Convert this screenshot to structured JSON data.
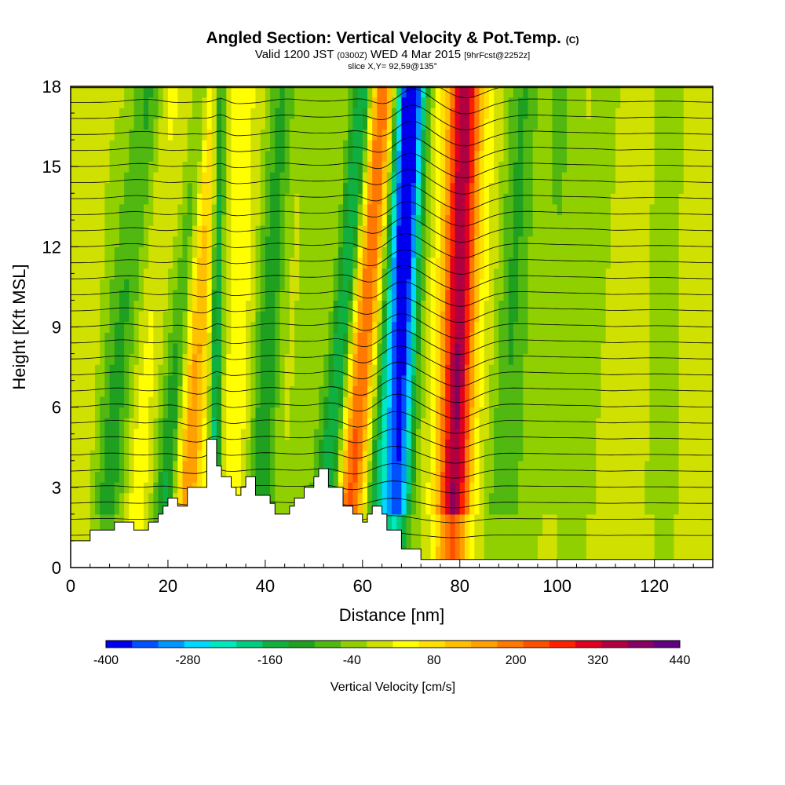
{
  "header": {
    "title_main": "Angled Section: Vertical Velocity & Pot.Temp.",
    "title_tag": "(C)",
    "valid_prefix": "Valid 1200 JST",
    "valid_utc": "(0300Z)",
    "valid_date": "WED 4 Mar 2015",
    "valid_fcst": "[9hrFcst@2252z]",
    "slice_info": "slice X,Y= 92,59@135°"
  },
  "chart_data": {
    "type": "heatmap",
    "xlabel": "Distance [nm]",
    "ylabel": "Height [Kft MSL]",
    "xlim": [
      0,
      132
    ],
    "ylim": [
      0,
      18
    ],
    "x_ticks": [
      0,
      20,
      40,
      60,
      80,
      100,
      120
    ],
    "y_ticks": [
      0,
      3,
      6,
      9,
      12,
      15,
      18
    ],
    "colorbar": {
      "label": "Vertical Velocity [cm/s]",
      "range": [
        -400,
        440
      ],
      "step": 40,
      "tick_labels": [
        "-400",
        "-280",
        "-160",
        "-40",
        "80",
        "200",
        "320",
        "440"
      ],
      "colors": [
        "#0000ee",
        "#0050ff",
        "#0096ff",
        "#00d8ff",
        "#00e8c0",
        "#00cc80",
        "#10b040",
        "#20a020",
        "#50b810",
        "#90d000",
        "#d0e000",
        "#ffff00",
        "#ffe000",
        "#ffc000",
        "#ffa000",
        "#ff7800",
        "#ff5000",
        "#ff2000",
        "#e00020",
        "#b00040",
        "#880060",
        "#600080"
      ]
    },
    "terrain_profile": {
      "x": [
        0,
        4,
        4,
        9,
        9,
        13,
        13,
        16,
        16,
        18,
        18,
        19,
        19,
        20,
        20,
        22,
        22,
        24,
        24,
        28,
        28,
        30,
        30,
        31,
        31,
        33,
        33,
        34,
        34,
        35,
        35,
        36,
        36,
        38,
        38,
        41,
        41,
        42,
        42,
        45,
        45,
        46,
        46,
        48,
        48,
        50,
        50,
        51,
        51,
        53,
        53,
        56,
        56,
        58,
        58,
        60,
        60,
        61,
        61,
        62,
        62,
        64,
        64,
        65,
        65,
        68,
        68,
        72,
        72,
        132
      ],
      "y": [
        1.0,
        1.0,
        1.4,
        1.4,
        1.7,
        1.7,
        1.4,
        1.4,
        1.7,
        1.7,
        2.0,
        2.0,
        2.3,
        2.3,
        2.6,
        2.6,
        2.3,
        2.3,
        3.0,
        3.0,
        4.8,
        4.8,
        3.8,
        3.8,
        3.4,
        3.4,
        3.0,
        3.0,
        2.7,
        2.7,
        3.0,
        3.0,
        3.4,
        3.4,
        2.7,
        2.7,
        2.4,
        2.4,
        2.0,
        2.0,
        2.3,
        2.3,
        2.6,
        2.6,
        3.0,
        3.0,
        3.4,
        3.4,
        3.7,
        3.7,
        3.0,
        3.0,
        2.3,
        2.3,
        2.0,
        2.0,
        1.7,
        1.7,
        2.0,
        2.0,
        2.3,
        2.3,
        2.0,
        2.0,
        1.4,
        1.4,
        0.7,
        0.7,
        0.3,
        0.3
      ]
    },
    "velocity_features": [
      {
        "x": 8,
        "slope": 0.55,
        "width": 3.5,
        "amp": -110
      },
      {
        "x": 14,
        "slope": 0.45,
        "width": 2.2,
        "amp": 40
      },
      {
        "x": 20,
        "slope": 0.55,
        "width": 2.5,
        "amp": -160
      },
      {
        "x": 24,
        "slope": 0.35,
        "width": 3.0,
        "amp": 170
      },
      {
        "x": 29.5,
        "slope": 0.1,
        "width": 1.2,
        "amp": -190
      },
      {
        "x": 34,
        "slope": 0.3,
        "width": 3.0,
        "amp": 30
      },
      {
        "x": 39,
        "slope": 0.35,
        "width": 3.0,
        "amp": -120
      },
      {
        "x": 46,
        "slope": 0.6,
        "width": 4.0,
        "amp": -40
      },
      {
        "x": 53,
        "slope": 0.55,
        "width": 2.5,
        "amp": -200
      },
      {
        "x": 58,
        "slope": 0.45,
        "width": 3.0,
        "amp": 240
      },
      {
        "x": 67,
        "slope": 0.25,
        "width": 2.8,
        "amp": -380
      },
      {
        "x": 63,
        "slope": 0.4,
        "width": 2.5,
        "amp": -150
      },
      {
        "x": 79,
        "slope": 0.15,
        "width": 3.2,
        "amp": 390
      },
      {
        "x": 88,
        "slope": 0.4,
        "width": 3.5,
        "amp": -90
      },
      {
        "x": 96,
        "slope": 0.3,
        "width": 4.0,
        "amp": -60
      },
      {
        "x": 106,
        "slope": 0.3,
        "width": 4.5,
        "amp": -50
      },
      {
        "x": 120,
        "slope": 0.2,
        "width": 4.0,
        "amp": -40
      },
      {
        "x": 110,
        "slope": 0.2,
        "width": 2.0,
        "amp": 30
      }
    ]
  }
}
